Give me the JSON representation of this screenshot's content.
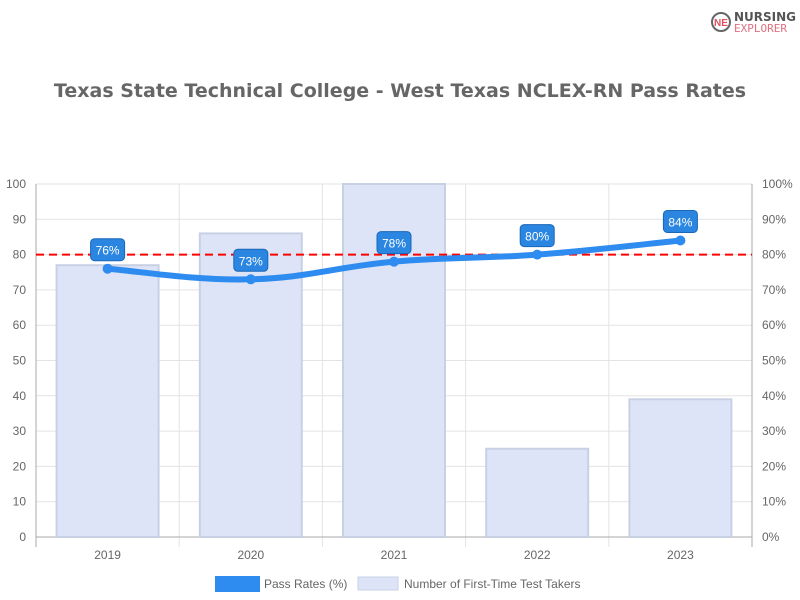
{
  "logo": {
    "line1": "NURSING",
    "line2": "EXPLORER"
  },
  "chart_data": {
    "type": "bar",
    "title": "Texas State Technical College - West Texas NCLEX-RN Pass Rates",
    "categories": [
      "2019",
      "2020",
      "2021",
      "2022",
      "2023"
    ],
    "series": [
      {
        "name": "Pass Rates (%)",
        "type": "line",
        "axis": "right",
        "values": [
          76,
          73,
          78,
          80,
          84
        ],
        "labels": [
          "76%",
          "73%",
          "78%",
          "80%",
          "84%"
        ],
        "color": "#2e8bef"
      },
      {
        "name": "Number of First-Time Test Takers",
        "type": "bar",
        "axis": "left",
        "values": [
          77,
          86,
          100,
          25,
          39
        ],
        "color": "#dde4f7"
      }
    ],
    "reference_line": {
      "value": 80,
      "color": "#ff0000",
      "style": "dashed"
    },
    "y_left": {
      "ylim": [
        0,
        100
      ],
      "ticks": [
        "0",
        "10",
        "20",
        "30",
        "40",
        "50",
        "60",
        "70",
        "80",
        "90",
        "100"
      ]
    },
    "y_right": {
      "ylim": [
        0,
        100
      ],
      "ticks": [
        "0%",
        "10%",
        "20%",
        "30%",
        "40%",
        "50%",
        "60%",
        "70%",
        "80%",
        "90%",
        "100%"
      ]
    },
    "grid": true,
    "legend": "bottom"
  }
}
